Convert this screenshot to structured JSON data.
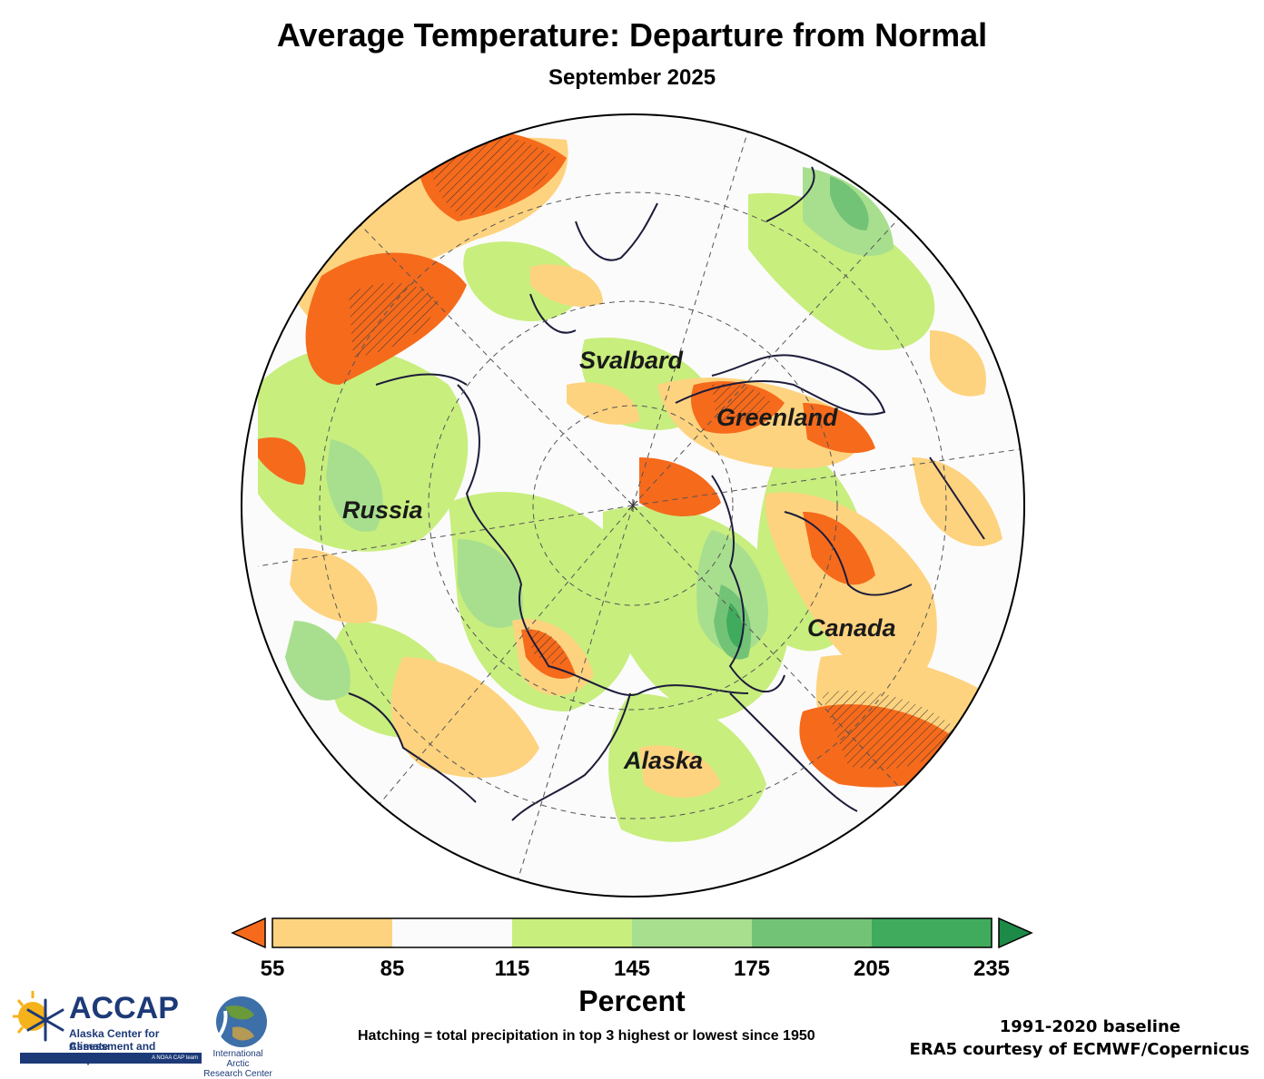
{
  "title": "Average Temperature: Departure from Normal",
  "subtitle": "September 2025",
  "map": {
    "labels": [
      "Svalbard",
      "Greenland",
      "Russia",
      "Canada",
      "Alaska"
    ]
  },
  "colorbar": {
    "ticks": [
      "55",
      "85",
      "115",
      "145",
      "175",
      "205",
      "235"
    ],
    "colors": [
      "#fed37f",
      "#fbfbfb",
      "#c8ee7e",
      "#a8df8f",
      "#73c377",
      "#40ab5d"
    ],
    "under_color": "#f66a1c",
    "over_color": "#1d8a47",
    "unit": "Percent"
  },
  "hatch_note": "Hatching = total precipitation in top 3 highest or lowest since 1950",
  "baseline": "1991-2020 baseline",
  "credit": "ERA5 courtesy of ECMWF/Copernicus",
  "logos": {
    "accap_name": "ACCAP",
    "accap_line1": "Alaska Center for Climate",
    "accap_line2": "Assessment and Preparedness",
    "accap_tag": "A NOAA CAP team",
    "iarc_line1": "International Arctic",
    "iarc_line2": "Research Center"
  }
}
